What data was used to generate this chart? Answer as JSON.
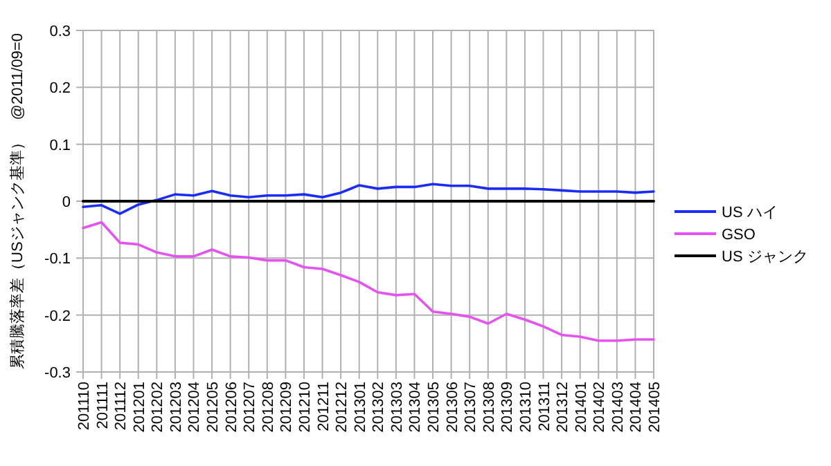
{
  "chart_data": {
    "type": "line",
    "ylabel": "累積騰落率差（USジャンク基準）　@2011/09=0",
    "categories": [
      "201110",
      "201111",
      "201112",
      "201201",
      "201202",
      "201203",
      "201204",
      "201205",
      "201206",
      "201207",
      "201208",
      "201209",
      "201210",
      "201211",
      "201212",
      "201301",
      "201302",
      "201303",
      "201304",
      "201305",
      "201306",
      "201307",
      "201308",
      "201309",
      "201310",
      "201311",
      "201312",
      "201401",
      "201402",
      "201403",
      "201404",
      "201405"
    ],
    "series": [
      {
        "name": "US ハイ",
        "color": "#1a2cf5",
        "values": [
          -0.01,
          -0.007,
          -0.022,
          -0.006,
          0.002,
          0.012,
          0.01,
          0.018,
          0.01,
          0.007,
          0.01,
          0.01,
          0.012,
          0.007,
          0.015,
          0.028,
          0.022,
          0.025,
          0.025,
          0.03,
          0.027,
          0.027,
          0.022,
          0.022,
          0.022,
          0.021,
          0.019,
          0.017,
          0.017,
          0.017,
          0.015,
          0.017
        ]
      },
      {
        "name": "GSO",
        "color": "#e552f0",
        "values": [
          -0.047,
          -0.037,
          -0.073,
          -0.076,
          -0.09,
          -0.097,
          -0.097,
          -0.085,
          -0.097,
          -0.099,
          -0.104,
          -0.104,
          -0.116,
          -0.119,
          -0.13,
          -0.142,
          -0.16,
          -0.165,
          -0.163,
          -0.194,
          -0.198,
          -0.203,
          -0.215,
          -0.198,
          -0.208,
          -0.22,
          -0.235,
          -0.238,
          -0.245,
          -0.245,
          -0.243,
          -0.243
        ]
      },
      {
        "name": "US ジャンク",
        "color": "#000000",
        "values": [
          0,
          0,
          0,
          0,
          0,
          0,
          0,
          0,
          0,
          0,
          0,
          0,
          0,
          0,
          0,
          0,
          0,
          0,
          0,
          0,
          0,
          0,
          0,
          0,
          0,
          0,
          0,
          0,
          0,
          0,
          0,
          0
        ]
      }
    ],
    "ylim": [
      -0.3,
      0.3
    ],
    "yticks": [
      -0.3,
      -0.2,
      -0.1,
      0,
      0.1,
      0.2,
      0.3
    ],
    "grid": true,
    "legend": "right",
    "marker": "none",
    "line_style": "solid"
  }
}
